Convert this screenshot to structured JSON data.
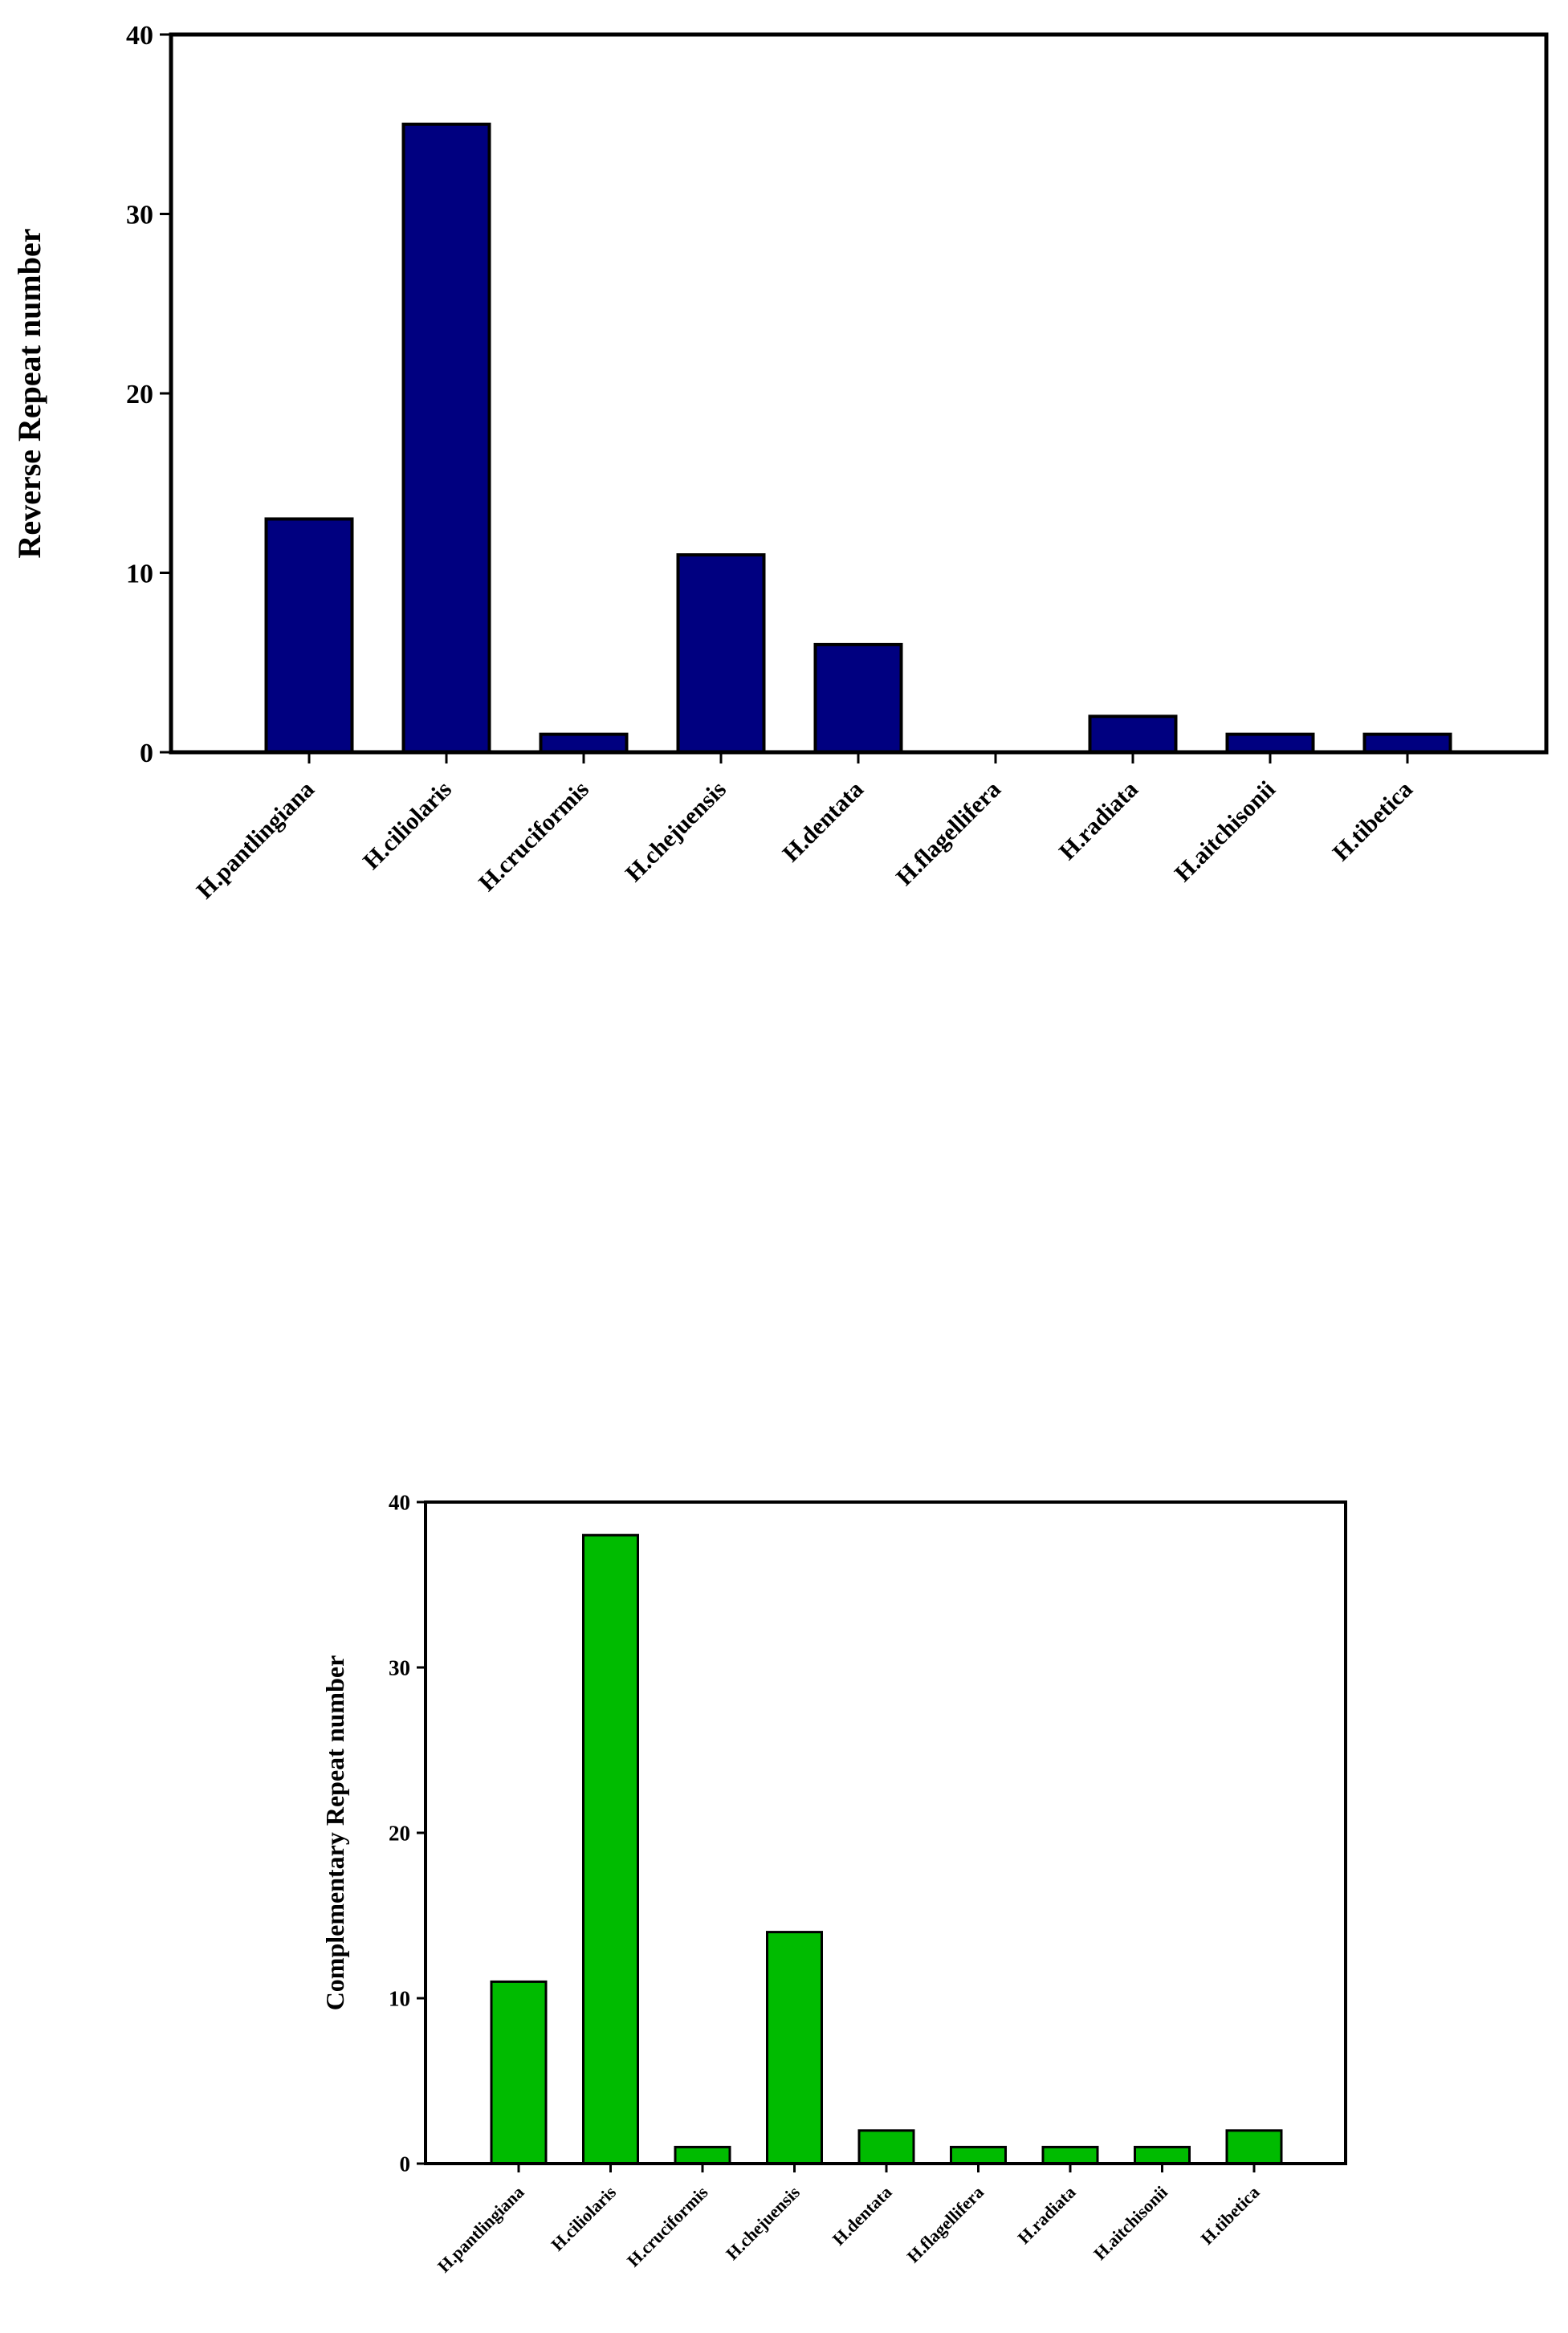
{
  "chart_data": [
    {
      "type": "bar",
      "title": "",
      "xlabel": "",
      "ylabel": "Reverse Repeat number",
      "categories": [
        "H.pantlingiana",
        "H.ciliolaris",
        "H.cruciformis",
        "H.chejuensis",
        "H.dentata",
        "H.flagellifera",
        "H.radiata",
        "H.aitchisonii",
        "H.tibetica"
      ],
      "values": [
        13,
        35,
        1,
        11,
        6,
        0,
        2,
        1,
        1
      ],
      "ylim": [
        0,
        40
      ],
      "yticks": [
        0,
        10,
        20,
        30,
        40
      ],
      "grid": false,
      "legend": null,
      "bar_color": "#000080"
    },
    {
      "type": "bar",
      "title": "",
      "xlabel": "",
      "ylabel": "Complementary Repeat number",
      "categories": [
        "H.pantlingiana",
        "H.ciliolaris",
        "H.cruciformis",
        "H.chejuensis",
        "H.dentata",
        "H.flagellifera",
        "H.radiata",
        "H.aitchisonii",
        "H.tibetica"
      ],
      "values": [
        11,
        38,
        1,
        14,
        2,
        1,
        1,
        1,
        2
      ],
      "ylim": [
        0,
        40
      ],
      "yticks": [
        0,
        10,
        20,
        30,
        40
      ],
      "grid": false,
      "legend": null,
      "bar_color": "#00BB00"
    }
  ]
}
